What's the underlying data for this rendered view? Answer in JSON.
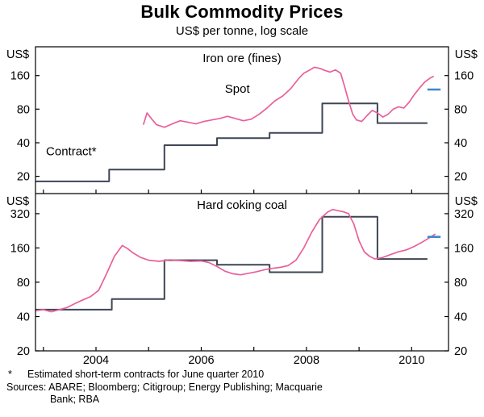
{
  "header": {
    "title": "Bulk Commodity Prices",
    "subtitle": "US$ per tonne, log scale"
  },
  "footnotes": {
    "asterisk": "*",
    "note": "Estimated short-term contracts for June quarter 2010",
    "sources_line1": "Sources: ABARE; Bloomberg; Citigroup; Energy Publishing; Macquarie",
    "sources_line2": "Bank; RBA"
  },
  "colors": {
    "spot": "#ea5f9a",
    "contract": "#3d4555",
    "estimate": "#3f87c9",
    "axis": "#000000"
  },
  "chart_data": [
    {
      "type": "line",
      "title": "Iron ore (fines)",
      "unit_label": "US$",
      "log_scale": true,
      "x_range": [
        2002.85,
        2010.7
      ],
      "y_range": [
        14,
        290
      ],
      "y_ticks": [
        20,
        40,
        80,
        160
      ],
      "x_ticks": [
        2004,
        2006,
        2008,
        2010
      ],
      "series": [
        {
          "name": "Contract*",
          "role": "contract",
          "color_key": "contract",
          "label_at": [
            2003.05,
            31
          ],
          "points": [
            [
              2002.85,
              18
            ],
            [
              2004.25,
              18
            ],
            [
              2004.25,
              23
            ],
            [
              2005.3,
              23
            ],
            [
              2005.3,
              38
            ],
            [
              2006.3,
              38
            ],
            [
              2006.3,
              44
            ],
            [
              2007.3,
              44
            ],
            [
              2007.3,
              49
            ],
            [
              2008.3,
              49
            ],
            [
              2008.3,
              90
            ],
            [
              2009.35,
              90
            ],
            [
              2009.35,
              60
            ],
            [
              2010.3,
              60
            ]
          ]
        },
        {
          "name": "Spot",
          "role": "spot",
          "color_key": "spot",
          "label_at": [
            2006.45,
            112
          ],
          "points": [
            [
              2004.9,
              58
            ],
            [
              2004.97,
              74
            ],
            [
              2005.05,
              66
            ],
            [
              2005.15,
              58
            ],
            [
              2005.3,
              55
            ],
            [
              2005.45,
              59
            ],
            [
              2005.6,
              63
            ],
            [
              2005.75,
              61
            ],
            [
              2005.9,
              59
            ],
            [
              2006.05,
              62
            ],
            [
              2006.2,
              64
            ],
            [
              2006.35,
              66
            ],
            [
              2006.5,
              69
            ],
            [
              2006.65,
              66
            ],
            [
              2006.8,
              63
            ],
            [
              2006.95,
              65
            ],
            [
              2007.1,
              72
            ],
            [
              2007.25,
              82
            ],
            [
              2007.4,
              95
            ],
            [
              2007.55,
              105
            ],
            [
              2007.7,
              122
            ],
            [
              2007.85,
              150
            ],
            [
              2007.95,
              168
            ],
            [
              2008.05,
              178
            ],
            [
              2008.15,
              190
            ],
            [
              2008.25,
              186
            ],
            [
              2008.35,
              178
            ],
            [
              2008.45,
              172
            ],
            [
              2008.55,
              180
            ],
            [
              2008.65,
              168
            ],
            [
              2008.72,
              130
            ],
            [
              2008.8,
              95
            ],
            [
              2008.88,
              72
            ],
            [
              2008.95,
              64
            ],
            [
              2009.05,
              62
            ],
            [
              2009.15,
              70
            ],
            [
              2009.25,
              78
            ],
            [
              2009.35,
              74
            ],
            [
              2009.45,
              68
            ],
            [
              2009.55,
              72
            ],
            [
              2009.65,
              80
            ],
            [
              2009.75,
              84
            ],
            [
              2009.85,
              82
            ],
            [
              2009.95,
              92
            ],
            [
              2010.05,
              108
            ],
            [
              2010.15,
              124
            ],
            [
              2010.25,
              140
            ],
            [
              2010.35,
              152
            ],
            [
              2010.42,
              158
            ]
          ]
        },
        {
          "name": "Estimated June quarter 2010 contract",
          "role": "estimate",
          "color_key": "estimate",
          "points": [
            [
              2010.3,
              120
            ],
            [
              2010.55,
              120
            ]
          ]
        }
      ]
    },
    {
      "type": "line",
      "title": "Hard coking coal",
      "unit_label": "US$",
      "log_scale": true,
      "x_range": [
        2002.85,
        2010.7
      ],
      "y_range": [
        20,
        480
      ],
      "y_ticks": [
        20,
        40,
        80,
        160,
        320
      ],
      "x_ticks": [
        2004,
        2006,
        2008,
        2010
      ],
      "series": [
        {
          "name": "Contract",
          "role": "contract",
          "color_key": "contract",
          "points": [
            [
              2002.85,
              46
            ],
            [
              2004.3,
              46
            ],
            [
              2004.3,
              57
            ],
            [
              2005.3,
              57
            ],
            [
              2005.3,
              125
            ],
            [
              2006.3,
              125
            ],
            [
              2006.3,
              114
            ],
            [
              2007.3,
              114
            ],
            [
              2007.3,
              98
            ],
            [
              2008.3,
              98
            ],
            [
              2008.3,
              300
            ],
            [
              2009.35,
              300
            ],
            [
              2009.35,
              128
            ],
            [
              2010.3,
              128
            ]
          ]
        },
        {
          "name": "Spot",
          "role": "spot",
          "color_key": "spot",
          "points": [
            [
              2002.85,
              45
            ],
            [
              2003.0,
              46
            ],
            [
              2003.15,
              44
            ],
            [
              2003.3,
              46
            ],
            [
              2003.45,
              48
            ],
            [
              2003.6,
              52
            ],
            [
              2003.75,
              56
            ],
            [
              2003.9,
              60
            ],
            [
              2004.05,
              68
            ],
            [
              2004.2,
              95
            ],
            [
              2004.35,
              135
            ],
            [
              2004.5,
              168
            ],
            [
              2004.6,
              158
            ],
            [
              2004.7,
              145
            ],
            [
              2004.85,
              132
            ],
            [
              2005.0,
              125
            ],
            [
              2005.2,
              122
            ],
            [
              2005.4,
              126
            ],
            [
              2005.6,
              124
            ],
            [
              2005.8,
              122
            ],
            [
              2006.0,
              123
            ],
            [
              2006.15,
              119
            ],
            [
              2006.3,
              110
            ],
            [
              2006.45,
              100
            ],
            [
              2006.6,
              95
            ],
            [
              2006.75,
              93
            ],
            [
              2006.9,
              96
            ],
            [
              2007.05,
              99
            ],
            [
              2007.2,
              103
            ],
            [
              2007.35,
              106
            ],
            [
              2007.5,
              108
            ],
            [
              2007.65,
              112
            ],
            [
              2007.8,
              125
            ],
            [
              2007.95,
              160
            ],
            [
              2008.1,
              220
            ],
            [
              2008.25,
              285
            ],
            [
              2008.4,
              330
            ],
            [
              2008.5,
              348
            ],
            [
              2008.6,
              340
            ],
            [
              2008.7,
              332
            ],
            [
              2008.8,
              320
            ],
            [
              2008.9,
              260
            ],
            [
              2009.0,
              185
            ],
            [
              2009.1,
              148
            ],
            [
              2009.2,
              135
            ],
            [
              2009.3,
              128
            ],
            [
              2009.45,
              132
            ],
            [
              2009.6,
              140
            ],
            [
              2009.75,
              148
            ],
            [
              2009.9,
              154
            ],
            [
              2010.05,
              165
            ],
            [
              2010.2,
              180
            ],
            [
              2010.35,
              198
            ],
            [
              2010.45,
              212
            ]
          ]
        },
        {
          "name": "Estimated June quarter 2010 contract",
          "role": "estimate",
          "color_key": "estimate",
          "points": [
            [
              2010.3,
              200
            ],
            [
              2010.55,
              200
            ]
          ]
        }
      ]
    }
  ]
}
